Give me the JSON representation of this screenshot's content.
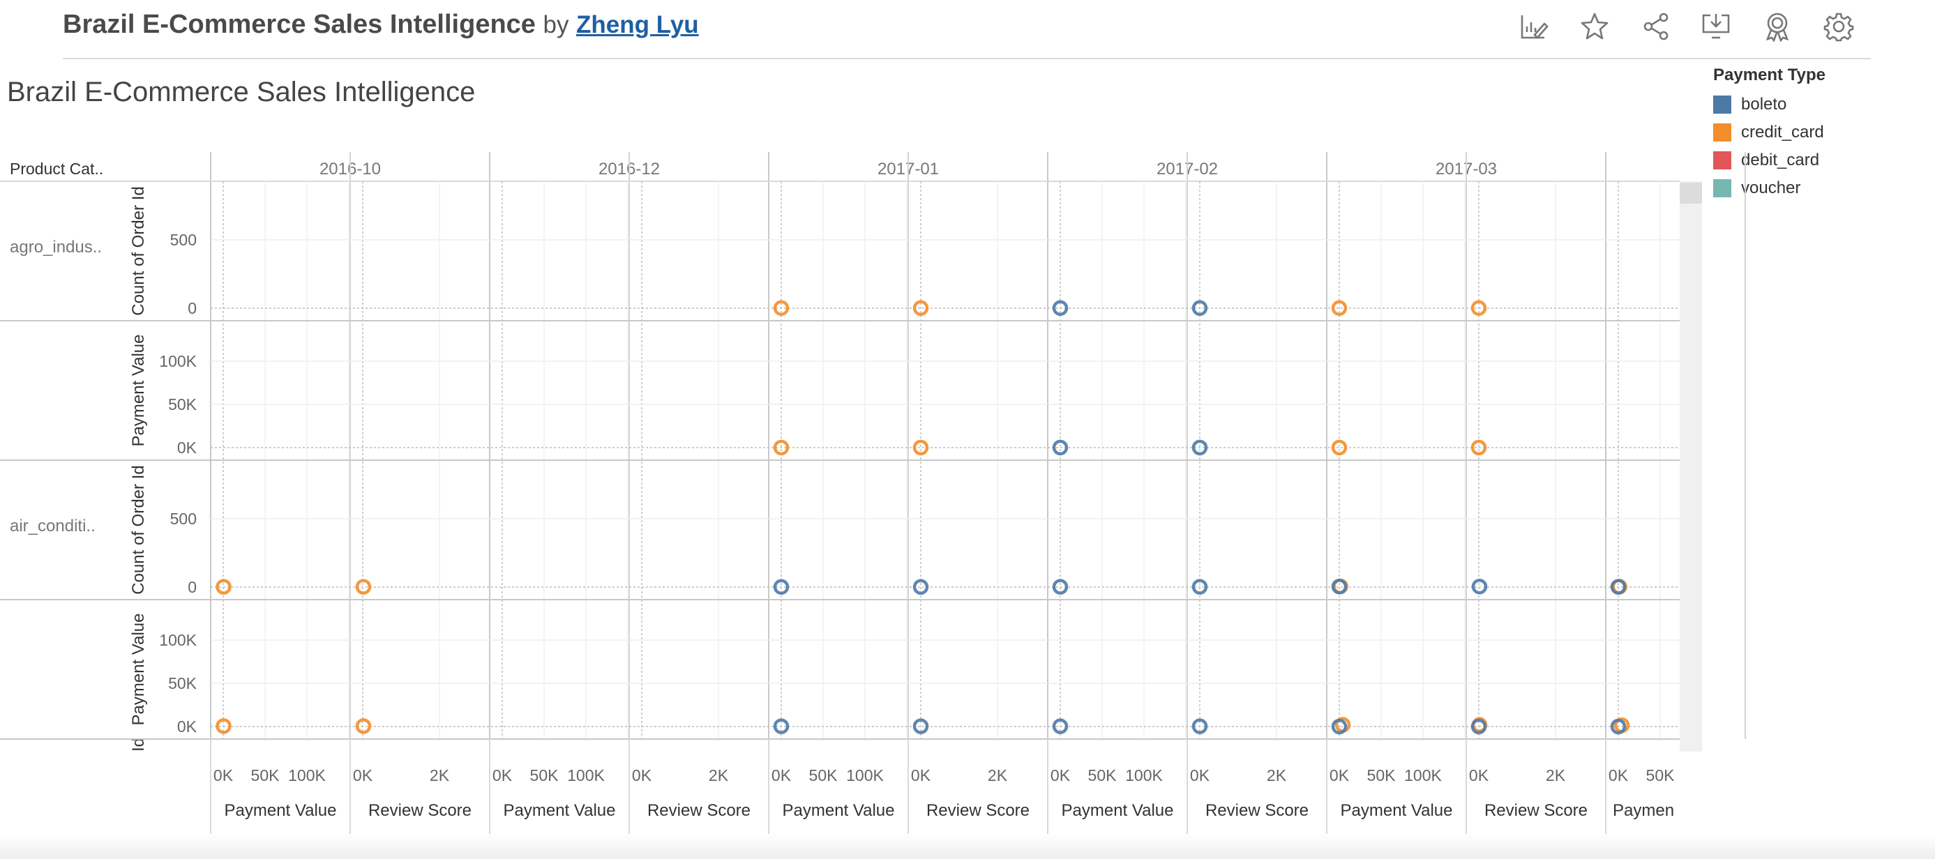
{
  "header": {
    "title": "Brazil E-Commerce Sales Intelligence",
    "by": "by",
    "author": "Zheng Lyu"
  },
  "toolbar": {
    "icons": [
      "edit-chart-icon",
      "favorite-star-icon",
      "share-icon",
      "download-icon",
      "metrics-badge-icon",
      "settings-gear-icon"
    ]
  },
  "dashboard_title": "Brazil E-Commerce Sales Intelligence",
  "row_header": "Product Cat..",
  "legend": {
    "title": "Payment Type",
    "items": [
      {
        "label": "boleto",
        "color": "#4e79a7"
      },
      {
        "label": "credit_card",
        "color": "#f28e2b"
      },
      {
        "label": "debit_card",
        "color": "#e15759"
      },
      {
        "label": "voucher",
        "color": "#76b7b2"
      }
    ]
  },
  "chart_data": {
    "type": "scatter",
    "title": "Brazil E-Commerce Sales Intelligence",
    "columns": [
      "2016-10",
      "2016-12",
      "2017-01",
      "2017-02",
      "2017-03",
      ""
    ],
    "x_measures": [
      "Payment Value",
      "Review Score"
    ],
    "x_measure_labels_visible": [
      "Payment Value",
      "Review Score",
      "Payment Value",
      "Review Score",
      "Payment Value",
      "Review Score",
      "Payment Value",
      "Review Score",
      "Payment Value",
      "Review Score",
      "Paymen"
    ],
    "x_ticks": {
      "Payment Value": [
        "0K",
        "50K",
        "100K"
      ],
      "Review Score": [
        "0K",
        "2K"
      ],
      "Paymen": [
        "0K",
        "50K"
      ]
    },
    "x_ranges": {
      "Payment Value": [
        0,
        160000
      ],
      "Review Score": [
        0,
        3600
      ]
    },
    "rows": [
      {
        "category": "agro_indus..",
        "measures": [
          {
            "name": "Count of Order Id",
            "ticks": [
              "500",
              "0"
            ],
            "ylim": [
              0,
              900
            ]
          },
          {
            "name": "Payment Value",
            "ticks": [
              "100K",
              "50K",
              "0K"
            ],
            "ylim": [
              0,
              150000
            ]
          }
        ]
      },
      {
        "category": "air_conditi..",
        "measures": [
          {
            "name": "Count of Order Id",
            "ticks": [
              "500",
              "0"
            ],
            "ylim": [
              0,
              900
            ]
          },
          {
            "name": "Payment Value",
            "ticks": [
              "100K",
              "50K",
              "0K"
            ],
            "ylim": [
              0,
              150000
            ]
          }
        ]
      }
    ],
    "row_partial_label": "Id",
    "grid": true,
    "legend_position": "top-right",
    "points": [
      {
        "row": 0,
        "measure": 0,
        "col": 2,
        "pane": 0,
        "x": 0,
        "y": 1,
        "series": "credit_card"
      },
      {
        "row": 0,
        "measure": 0,
        "col": 2,
        "pane": 1,
        "x": 0,
        "y": 1,
        "series": "credit_card"
      },
      {
        "row": 0,
        "measure": 0,
        "col": 3,
        "pane": 0,
        "x": 0,
        "y": 1,
        "series": "boleto"
      },
      {
        "row": 0,
        "measure": 0,
        "col": 3,
        "pane": 1,
        "x": 0,
        "y": 1,
        "series": "boleto"
      },
      {
        "row": 0,
        "measure": 0,
        "col": 4,
        "pane": 0,
        "x": 0,
        "y": 1,
        "series": "credit_card"
      },
      {
        "row": 0,
        "measure": 0,
        "col": 4,
        "pane": 1,
        "x": 0,
        "y": 1,
        "series": "credit_card"
      },
      {
        "row": 0,
        "measure": 1,
        "col": 2,
        "pane": 0,
        "x": 0,
        "y": 100,
        "series": "credit_card"
      },
      {
        "row": 0,
        "measure": 1,
        "col": 2,
        "pane": 1,
        "x": 0,
        "y": 100,
        "series": "credit_card"
      },
      {
        "row": 0,
        "measure": 1,
        "col": 3,
        "pane": 0,
        "x": 0,
        "y": 100,
        "series": "boleto"
      },
      {
        "row": 0,
        "measure": 1,
        "col": 3,
        "pane": 1,
        "x": 0,
        "y": 100,
        "series": "boleto"
      },
      {
        "row": 0,
        "measure": 1,
        "col": 4,
        "pane": 0,
        "x": 0,
        "y": 100,
        "series": "credit_card"
      },
      {
        "row": 0,
        "measure": 1,
        "col": 4,
        "pane": 1,
        "x": 0,
        "y": 100,
        "series": "credit_card"
      },
      {
        "row": 1,
        "measure": 0,
        "col": 0,
        "pane": 0,
        "x": 500,
        "y": 2,
        "series": "credit_card"
      },
      {
        "row": 1,
        "measure": 0,
        "col": 0,
        "pane": 1,
        "x": 20,
        "y": 2,
        "series": "credit_card"
      },
      {
        "row": 1,
        "measure": 0,
        "col": 2,
        "pane": 0,
        "x": 0,
        "y": 1,
        "series": "boleto"
      },
      {
        "row": 1,
        "measure": 0,
        "col": 2,
        "pane": 1,
        "x": 0,
        "y": 1,
        "series": "boleto"
      },
      {
        "row": 1,
        "measure": 0,
        "col": 3,
        "pane": 0,
        "x": 0,
        "y": 2,
        "series": "boleto"
      },
      {
        "row": 1,
        "measure": 0,
        "col": 3,
        "pane": 1,
        "x": 0,
        "y": 2,
        "series": "boleto"
      },
      {
        "row": 1,
        "measure": 0,
        "col": 4,
        "pane": 0,
        "x": 1500,
        "y": 5,
        "series": "credit_card"
      },
      {
        "row": 1,
        "measure": 0,
        "col": 4,
        "pane": 0,
        "x": 0,
        "y": 4,
        "series": "boleto"
      },
      {
        "row": 1,
        "measure": 0,
        "col": 4,
        "pane": 1,
        "x": 20,
        "y": 4,
        "series": "boleto"
      },
      {
        "row": 1,
        "measure": 0,
        "col": 5,
        "pane": 0,
        "x": 1500,
        "y": 3,
        "series": "credit_card"
      },
      {
        "row": 1,
        "measure": 0,
        "col": 5,
        "pane": 0,
        "x": 0,
        "y": 2,
        "series": "boleto"
      },
      {
        "row": 1,
        "measure": 1,
        "col": 0,
        "pane": 0,
        "x": 500,
        "y": 500,
        "series": "credit_card"
      },
      {
        "row": 1,
        "measure": 1,
        "col": 0,
        "pane": 1,
        "x": 20,
        "y": 500,
        "series": "credit_card"
      },
      {
        "row": 1,
        "measure": 1,
        "col": 2,
        "pane": 0,
        "x": 0,
        "y": 300,
        "series": "boleto"
      },
      {
        "row": 1,
        "measure": 1,
        "col": 2,
        "pane": 1,
        "x": 0,
        "y": 300,
        "series": "boleto"
      },
      {
        "row": 1,
        "measure": 1,
        "col": 3,
        "pane": 0,
        "x": 0,
        "y": 300,
        "series": "boleto"
      },
      {
        "row": 1,
        "measure": 1,
        "col": 3,
        "pane": 1,
        "x": 0,
        "y": 300,
        "series": "boleto"
      },
      {
        "row": 1,
        "measure": 1,
        "col": 4,
        "pane": 0,
        "x": 4500,
        "y": 2000,
        "series": "credit_card"
      },
      {
        "row": 1,
        "measure": 1,
        "col": 4,
        "pane": 0,
        "x": 0,
        "y": 0,
        "series": "boleto"
      },
      {
        "row": 1,
        "measure": 1,
        "col": 4,
        "pane": 1,
        "x": 20,
        "y": 2000,
        "series": "credit_card"
      },
      {
        "row": 1,
        "measure": 1,
        "col": 4,
        "pane": 1,
        "x": 0,
        "y": 0,
        "series": "boleto"
      },
      {
        "row": 1,
        "measure": 1,
        "col": 5,
        "pane": 0,
        "x": 4500,
        "y": 1500,
        "series": "credit_card"
      },
      {
        "row": 1,
        "measure": 1,
        "col": 5,
        "pane": 0,
        "x": 0,
        "y": 0,
        "series": "boleto"
      }
    ]
  }
}
